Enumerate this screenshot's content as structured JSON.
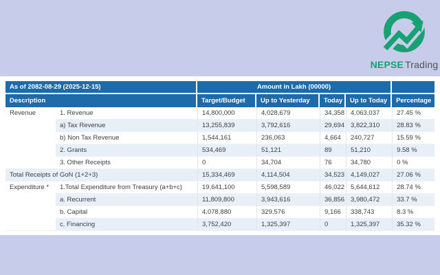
{
  "colors": {
    "background": "#c6cce9",
    "header_blue": "#1e6bac",
    "row_alt_blue": "#e9eff6",
    "brand_green": "#18a173"
  },
  "logo": {
    "brand_bold": "NEPSE",
    "brand_regular": "Trading"
  },
  "table": {
    "as_of": "As of 2082-08-29 (2025-12-15)",
    "amount_unit": "Amount in Lakh (00000)",
    "columns": [
      "Description",
      "Target/Budget",
      "Up to Yesterday",
      "Today",
      "Up to Today",
      "Percentage"
    ],
    "rows": [
      {
        "category": "Revenue",
        "category_rowspan": 5,
        "desc": "1. Revenue",
        "values": [
          "14,800,000",
          "4,028,679",
          "34,358",
          "4,063,037",
          "27.45 %"
        ]
      },
      {
        "desc": "a) Tax Revenue",
        "values": [
          "13,255,839",
          "3,792,616",
          "29,694",
          "3,822,310",
          "28.83 %"
        ]
      },
      {
        "desc": "b) Non Tax Revenue",
        "values": [
          "1,544,161",
          "236,063",
          "4,664",
          "240,727",
          "15.59 %"
        ]
      },
      {
        "desc": "2. Grants",
        "values": [
          "534,469",
          "51,121",
          "89",
          "51,210",
          "9.58 %"
        ]
      },
      {
        "desc": "3. Other Receipts",
        "values": [
          "0",
          "34,704",
          "76",
          "34,780",
          "0 %"
        ]
      },
      {
        "desc": "Total Receipts of GoN (1+2+3)",
        "full_width_desc": true,
        "values": [
          "15,334,469",
          "4,114,504",
          "34,523",
          "4,149,027",
          "27.06 %"
        ]
      },
      {
        "category": "Expenditure *",
        "category_rowspan": 4,
        "desc": "1.Total Expenditure from Treasury (a+b+c)",
        "values": [
          "19,641,100",
          "5,598,589",
          "46,022",
          "5,644,612",
          "28.74 %"
        ]
      },
      {
        "desc": "a. Recurrent",
        "values": [
          "11,809,800",
          "3,943,616",
          "36,856",
          "3,980,472",
          "33.7 %"
        ]
      },
      {
        "desc": "b. Capital",
        "values": [
          "4,078,880",
          "329,576",
          "9,166",
          "338,743",
          "8.3 %"
        ]
      },
      {
        "desc": "c. Financing",
        "values": [
          "3,752,420",
          "1,325,397",
          "0",
          "1,325,397",
          "35.32 %"
        ]
      }
    ]
  }
}
